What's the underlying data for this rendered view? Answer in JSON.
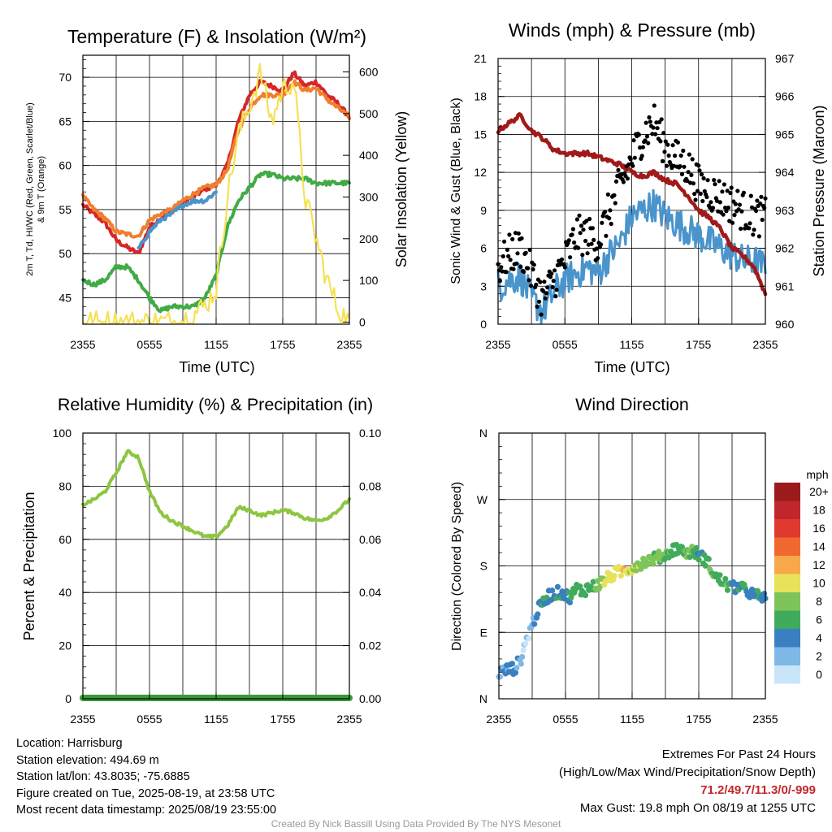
{
  "chart_data": [
    {
      "type": "line",
      "title": "Temperature (F) & Insolation (W/m²)",
      "xlabel": "Time (UTC)",
      "ylabel": "2m T, Td, HI/WC (Red, Green, Scarlet/Blue) & 9m T (Orange)",
      "ylabel_line1": "2m T, Td, HI/WC (Red, Green, Scarlet/Blue)",
      "ylabel_line2": "& 9m T (Orange)",
      "ylabel_right": "Solar Insolation (Yellow)",
      "x_ticks": [
        "2355",
        "0555",
        "1155",
        "1755",
        "2355"
      ],
      "ylim": [
        42,
        72.5
      ],
      "y_ticks": [
        45,
        50,
        55,
        60,
        65,
        70
      ],
      "y2lim": [
        -5,
        640
      ],
      "y2_ticks": [
        0,
        100,
        200,
        300,
        400,
        500,
        600
      ],
      "x": [
        0,
        1,
        2,
        3,
        4,
        5,
        6,
        7,
        8,
        9,
        10,
        11,
        12,
        13,
        14,
        15,
        16,
        17,
        18,
        19,
        20,
        21,
        22,
        23,
        24
      ],
      "series": [
        {
          "name": "2m T",
          "color": "#d62728",
          "axis": "left",
          "values": [
            55.5,
            54.5,
            53.5,
            51.5,
            50.7,
            50.0,
            53.0,
            54.0,
            54.8,
            55.8,
            56.5,
            57.3,
            57.8,
            60.0,
            65.0,
            68.0,
            69.5,
            69.0,
            68.5,
            70.5,
            69.0,
            69.5,
            68.0,
            67.0,
            65.5
          ]
        },
        {
          "name": "9m T",
          "color": "#f07f2e",
          "axis": "left",
          "values": [
            56.5,
            55.0,
            54.0,
            52.5,
            52.2,
            52.0,
            53.8,
            54.5,
            55.0,
            56.0,
            56.8,
            57.5,
            57.8,
            59.5,
            64.0,
            66.5,
            68.0,
            68.0,
            68.0,
            69.5,
            68.5,
            68.8,
            67.5,
            66.5,
            65.5
          ]
        },
        {
          "name": "Td",
          "color": "#41ab45",
          "axis": "left",
          "values": [
            47.0,
            46.5,
            47.0,
            48.5,
            48.5,
            47.0,
            45.0,
            43.5,
            44.0,
            44.0,
            44.0,
            45.0,
            47.5,
            53.0,
            56.0,
            57.5,
            59.0,
            59.0,
            58.5,
            58.5,
            58.5,
            58.0,
            58.0,
            58.0,
            58.0
          ]
        },
        {
          "name": "HI/WC",
          "color": "#4a94cc",
          "axis": "left",
          "values": [
            null,
            null,
            null,
            null,
            null,
            50.5,
            52.5,
            53.8,
            54.5,
            55.5,
            56.0,
            56.0,
            57.0,
            null,
            null,
            null,
            null,
            null,
            null,
            null,
            null,
            null,
            null,
            null,
            null
          ]
        },
        {
          "name": "Solar Insolation",
          "color": "#f5e154",
          "axis": "right",
          "values": [
            0,
            0,
            0,
            0,
            0,
            0,
            0,
            0,
            0,
            5,
            20,
            40,
            80,
            300,
            450,
            520,
            600,
            480,
            560,
            580,
            300,
            200,
            100,
            30,
            0
          ]
        }
      ]
    },
    {
      "type": "line",
      "title": "Winds (mph) & Pressure (mb)",
      "xlabel": "Time (UTC)",
      "ylabel": "Sonic Wind & Gust (Blue, Black)",
      "ylabel_right": "Station Pressure (Maroon)",
      "x_ticks": [
        "2355",
        "0555",
        "1155",
        "1755",
        "2355"
      ],
      "ylim": [
        0,
        21
      ],
      "y_ticks": [
        0,
        3,
        6,
        9,
        12,
        15,
        18,
        21
      ],
      "y2lim": [
        960,
        967
      ],
      "y2_ticks": [
        960,
        961,
        962,
        963,
        964,
        965,
        966,
        967
      ],
      "x": [
        0,
        1,
        2,
        3,
        4,
        5,
        6,
        7,
        8,
        9,
        10,
        11,
        12,
        13,
        14,
        15,
        16,
        17,
        18,
        19,
        20,
        21,
        22,
        23,
        24
      ],
      "series": [
        {
          "name": "Sonic Wind",
          "color": "#4a94cc",
          "axis": "left",
          "values": [
            3.0,
            3.5,
            3.8,
            2.0,
            1.0,
            2.5,
            3.5,
            4.0,
            4.5,
            4.0,
            5.5,
            6.5,
            8.5,
            9.0,
            9.5,
            8.5,
            8.0,
            7.5,
            7.0,
            6.5,
            6.0,
            5.5,
            5.0,
            5.0,
            4.5
          ]
        },
        {
          "name": "Gust",
          "color": "#000000",
          "axis": "left",
          "values": [
            4.5,
            5.5,
            6.0,
            4.0,
            2.0,
            3.5,
            5.0,
            7.0,
            7.0,
            6.5,
            9.0,
            11.0,
            13.0,
            15.0,
            16.0,
            14.0,
            13.0,
            12.5,
            11.0,
            10.5,
            10.0,
            9.5,
            9.0,
            8.5,
            8.5
          ]
        },
        {
          "name": "Station Pressure",
          "color": "#a01a1a",
          "axis": "right",
          "values": [
            965.1,
            965.3,
            965.5,
            965.1,
            964.9,
            964.6,
            964.5,
            964.5,
            964.5,
            964.4,
            964.3,
            964.2,
            964.0,
            963.9,
            964.0,
            963.8,
            963.7,
            963.4,
            963.0,
            962.8,
            962.5,
            962.0,
            961.8,
            961.5,
            960.8
          ]
        }
      ]
    },
    {
      "type": "line",
      "title": "Relative Humidity (%) & Precipitation (in)",
      "xlabel": "",
      "ylabel": "Percent & Precipitation",
      "x_ticks": [
        "2355",
        "0555",
        "1155",
        "1755",
        "2355"
      ],
      "ylim": [
        0,
        100
      ],
      "y_ticks": [
        0,
        20,
        40,
        60,
        80,
        100
      ],
      "y2lim": [
        0,
        0.1
      ],
      "y2_ticks": [
        "0.00",
        "0.02",
        "0.04",
        "0.06",
        "0.08",
        "0.10"
      ],
      "x": [
        0,
        1,
        2,
        3,
        4,
        5,
        6,
        7,
        8,
        9,
        10,
        11,
        12,
        13,
        14,
        15,
        16,
        17,
        18,
        19,
        20,
        21,
        22,
        23,
        24
      ],
      "series": [
        {
          "name": "Relative Humidity",
          "color": "#8dc641",
          "axis": "left",
          "values": [
            73,
            75,
            78,
            85,
            93,
            91,
            78,
            70,
            67,
            65,
            63,
            61,
            61,
            65,
            72,
            71,
            69,
            70,
            71,
            70,
            68,
            67,
            68,
            71,
            75
          ]
        },
        {
          "name": "Precipitation",
          "color": "#3a9a3a",
          "axis": "right",
          "values": [
            0,
            0,
            0,
            0,
            0,
            0,
            0,
            0,
            0,
            0,
            0,
            0,
            0,
            0,
            0,
            0,
            0,
            0,
            0,
            0,
            0,
            0,
            0,
            0,
            0
          ]
        }
      ]
    },
    {
      "type": "scatter",
      "title": "Wind Direction",
      "xlabel": "",
      "ylabel": "Direction (Colored By Speed)",
      "x_ticks": [
        "2355",
        "0555",
        "1155",
        "1755",
        "2355"
      ],
      "y_ticks": [
        "N",
        "E",
        "S",
        "W",
        "N"
      ],
      "ylim": [
        0,
        360
      ],
      "x": [
        0,
        0.5,
        1,
        1.5,
        2,
        2.5,
        3,
        3.5,
        4,
        4.5,
        5,
        5.5,
        6,
        6.5,
        7,
        7.5,
        8,
        8.5,
        9,
        9.5,
        10,
        10.5,
        11,
        11.5,
        12,
        12.5,
        13,
        13.5,
        14,
        14.5,
        15,
        15.5,
        16,
        16.5,
        17,
        17.5,
        18,
        18.5,
        19,
        19.5,
        20,
        20.5,
        21,
        21.5,
        22,
        22.5,
        23,
        23.5,
        24
      ],
      "values": [
        35,
        38,
        40,
        42,
        55,
        80,
        100,
        120,
        130,
        140,
        142,
        145,
        140,
        138,
        150,
        145,
        150,
        152,
        155,
        160,
        165,
        170,
        172,
        175,
        178,
        182,
        185,
        188,
        190,
        192,
        195,
        200,
        205,
        200,
        198,
        200,
        195,
        190,
        180,
        165,
        160,
        155,
        150,
        152,
        148,
        145,
        140,
        138,
        135
      ],
      "speeds": [
        3,
        3,
        4,
        3,
        2,
        1,
        2,
        4,
        5,
        4,
        4,
        5,
        4,
        5,
        6,
        5,
        6,
        7,
        8,
        9,
        10,
        10,
        10,
        11,
        9,
        9,
        8,
        8,
        7,
        7,
        7,
        6,
        6,
        6,
        7,
        6,
        5,
        6,
        7,
        6,
        6,
        7,
        5,
        5,
        6,
        4,
        4,
        5,
        4
      ],
      "colorbar": {
        "title": "mph",
        "labels": [
          "20+",
          "18",
          "16",
          "14",
          "12",
          "10",
          "8",
          "6",
          "4",
          "2",
          "0"
        ],
        "colors": [
          "#9b1a1a",
          "#c0272d",
          "#e03a30",
          "#f0682e",
          "#f8a84a",
          "#e6e25a",
          "#7fc45a",
          "#41ab5d",
          "#3a7fc0",
          "#7fb8e6",
          "#c8e6f8"
        ]
      }
    }
  ],
  "info": {
    "location": "Location: Harrisburg",
    "elevation": "Station elevation: 494.69 m",
    "latlon": "Station lat/lon: 43.8035; -75.6885",
    "created": "Figure created on Tue, 2025-08-19, at 23:58 UTC",
    "recent": "Most recent data timestamp: 2025/08/19 23:55:00"
  },
  "extremes": {
    "title": "Extremes For Past 24 Hours",
    "subtitle": "(High/Low/Max Wind/Precipitation/Snow Depth)",
    "values": "71.2/49.7/11.3/0/-999",
    "gust": "Max Gust: 19.8 mph On 08/19 at 1255 UTC"
  },
  "credit": "Created By Nick Bassill Using Data Provided By The NYS Mesonet"
}
